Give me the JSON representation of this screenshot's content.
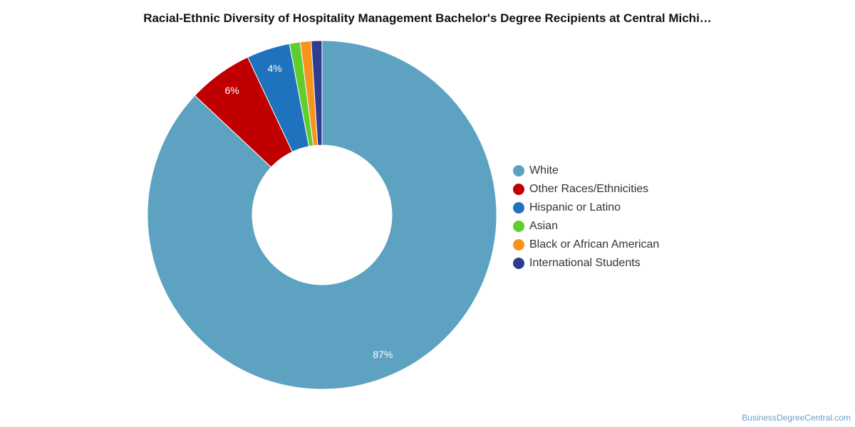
{
  "title": "Racial-Ethnic Diversity of Hospitality Management Bachelor's Degree Recipients at Central Michi…",
  "source_link": "BusinessDegreeCentral.com",
  "chart_data": {
    "type": "pie",
    "donut": true,
    "legend_position": "right",
    "slices": [
      {
        "name": "White",
        "value": 87,
        "label": "87%",
        "color": "#5da2c1"
      },
      {
        "name": "Other Races/Ethnicities",
        "value": 6,
        "label": "6%",
        "color": "#c00000"
      },
      {
        "name": "Hispanic or Latino",
        "value": 4,
        "label": "4%",
        "color": "#1f72bd"
      },
      {
        "name": "Asian",
        "value": 1,
        "label": "",
        "color": "#5fce2d"
      },
      {
        "name": "Black or African American",
        "value": 1,
        "label": "",
        "color": "#f7941d"
      },
      {
        "name": "International Students",
        "value": 1,
        "label": "",
        "color": "#2e3d8f"
      }
    ]
  }
}
